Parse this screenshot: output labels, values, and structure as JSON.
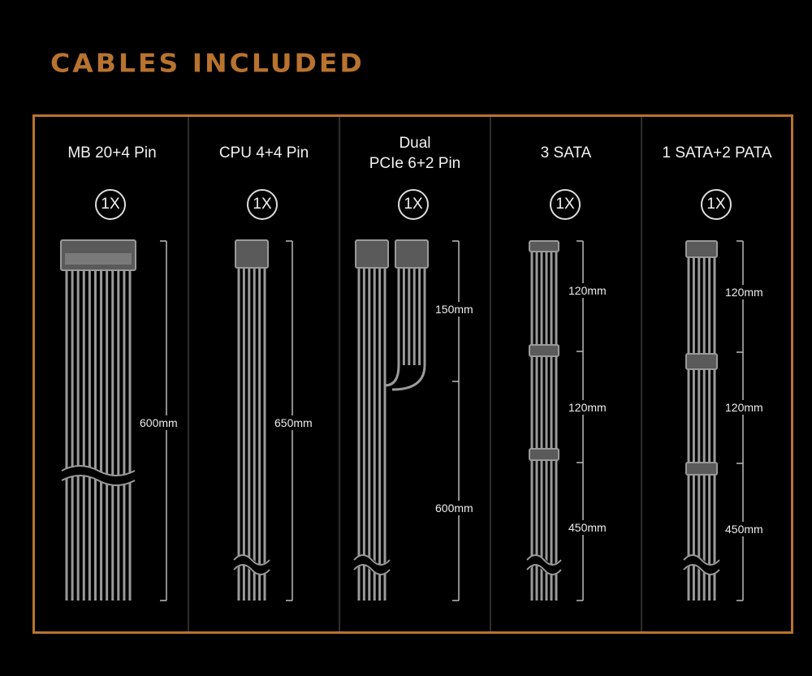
{
  "title": "CABLES INCLUDED",
  "accent_color": "#b8732f",
  "cables": [
    {
      "name": "MB 20+4 Pin",
      "quantity": "1X",
      "lengths": [
        "600mm"
      ]
    },
    {
      "name": "CPU 4+4 Pin",
      "quantity": "1X",
      "lengths": [
        "650mm"
      ]
    },
    {
      "name_line1": "Dual",
      "name_line2": "PCIe 6+2 Pin",
      "quantity": "1X",
      "lengths": [
        "150mm",
        "600mm"
      ]
    },
    {
      "name": "3 SATA",
      "quantity": "1X",
      "lengths": [
        "120mm",
        "120mm",
        "450mm"
      ]
    },
    {
      "name": "1 SATA+2 PATA",
      "quantity": "1X",
      "lengths": [
        "120mm",
        "120mm",
        "450mm"
      ]
    }
  ]
}
